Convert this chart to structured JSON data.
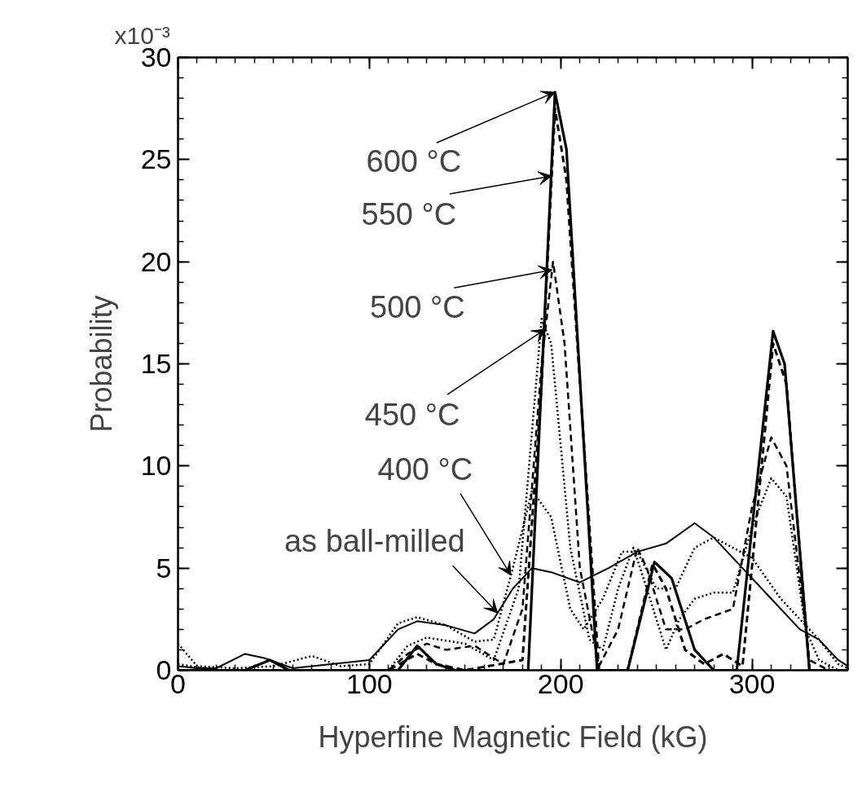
{
  "chart_data": {
    "type": "line",
    "xlabel": "Hyperfine Magnetic Field (kG)",
    "ylabel": "Probability",
    "xlim": [
      0,
      350
    ],
    "ylim": [
      0,
      30
    ],
    "xticks": [
      0,
      100,
      200,
      300
    ],
    "yticks": [
      0,
      5,
      10,
      15,
      20,
      25,
      30
    ],
    "grid": false,
    "series": [
      {
        "color": "#000000",
        "line_style": "solid",
        "x": [
          0,
          10,
          20,
          35,
          45,
          60,
          80,
          100,
          115,
          125,
          140,
          155,
          165,
          175,
          185,
          195,
          210,
          225,
          240,
          255,
          270,
          280,
          295,
          310,
          325,
          335,
          345,
          350
        ],
        "values": [
          0.2,
          0.1,
          0.1,
          0.8,
          0.6,
          0.1,
          0.3,
          0.5,
          2.0,
          2.4,
          2.2,
          1.8,
          2.5,
          4.0,
          5.0,
          4.8,
          4.3,
          5.0,
          5.8,
          6.2,
          7.2,
          6.5,
          5.0,
          3.5,
          2.0,
          1.5,
          0.5,
          0.2
        ]
      },
      {
        "color": "#000000",
        "line_style": "dotted",
        "x": [
          0,
          10,
          30,
          50,
          70,
          85,
          100,
          115,
          125,
          140,
          155,
          165,
          175,
          185,
          195,
          205,
          212,
          222,
          232,
          240,
          250,
          260,
          270,
          280,
          300,
          315,
          325,
          335,
          345,
          350
        ],
        "values": [
          1.3,
          0.2,
          0.1,
          0.2,
          0.7,
          0.2,
          0.3,
          2.3,
          2.6,
          2.2,
          1.4,
          1.5,
          5.0,
          8.8,
          7.5,
          3.0,
          2.0,
          3.5,
          5.8,
          5.8,
          4.0,
          4.0,
          6.0,
          6.5,
          5.5,
          3.5,
          2.5,
          1.5,
          0.3,
          0.1
        ]
      },
      {
        "color": "#000000",
        "line_style": "dotted",
        "x": [
          0,
          20,
          110,
          120,
          130,
          150,
          165,
          178,
          190,
          195,
          205,
          215,
          222,
          230,
          238,
          245,
          255,
          262,
          270,
          280,
          290,
          300,
          310,
          318,
          328,
          335,
          345,
          350
        ],
        "values": [
          0.3,
          0,
          0,
          1.2,
          1.6,
          1.3,
          0.5,
          4.0,
          17.2,
          16.0,
          6.0,
          1.5,
          1.0,
          4.0,
          6.0,
          4.0,
          1.0,
          2.5,
          3.5,
          3.8,
          3.8,
          7.0,
          9.4,
          8.5,
          2.0,
          0.5,
          0,
          0
        ]
      },
      {
        "color": "#000000",
        "line_style": "dashed",
        "x": [
          0,
          110,
          120,
          130,
          140,
          155,
          170,
          180,
          190,
          196,
          202,
          210,
          220,
          230,
          240,
          245,
          255,
          265,
          275,
          290,
          300,
          310,
          318,
          330,
          340,
          350
        ],
        "values": [
          0,
          0,
          0.8,
          1.3,
          1.0,
          1.2,
          0.3,
          3.0,
          15.0,
          20.0,
          16.0,
          5.0,
          0.2,
          2.0,
          6.0,
          5.0,
          2.0,
          2.0,
          2.5,
          3.0,
          8.0,
          11.4,
          10.0,
          0.5,
          0,
          0
        ]
      },
      {
        "color": "#000000",
        "line_style": "dashed",
        "x": [
          0,
          110,
          125,
          135,
          150,
          180,
          190,
          197,
          203,
          220,
          235,
          248,
          255,
          265,
          275,
          285,
          295,
          305,
          311,
          318,
          330,
          350
        ],
        "values": [
          0,
          0,
          0.8,
          0.3,
          0,
          0.5,
          14.0,
          27.5,
          24.0,
          0,
          0,
          5.2,
          4.0,
          1.0,
          0.3,
          0.8,
          0.2,
          10.0,
          16.0,
          14.0,
          0,
          0
        ]
      },
      {
        "color": "#000000",
        "line_style": "solid",
        "x": [
          0,
          35,
          48,
          58,
          115,
          125,
          135,
          145,
          183,
          197,
          203,
          219,
          235,
          249,
          258,
          270,
          280,
          292,
          311,
          317,
          330,
          350
        ],
        "values": [
          0,
          0,
          0.5,
          0,
          0,
          1.2,
          0.3,
          0,
          0,
          28.3,
          25.5,
          0,
          0,
          5.3,
          4.5,
          1.0,
          0,
          0,
          16.6,
          15.0,
          0,
          0
        ]
      }
    ],
    "annotations": [
      "x10⁻³",
      {
        "text": "600 °C",
        "x": 197,
        "y": 28.3
      },
      {
        "text": "550 °C",
        "x": 195.3,
        "y": 24.2
      },
      {
        "text": "500 °C",
        "x": 195.5,
        "y": 19.6
      },
      {
        "text": "450 °C",
        "x": 192,
        "y": 16.7
      },
      {
        "text": "400 °C",
        "x": 174,
        "y": 4.65
      },
      {
        "text": "as ball-milled",
        "x": 167,
        "y": 2.8
      }
    ]
  }
}
